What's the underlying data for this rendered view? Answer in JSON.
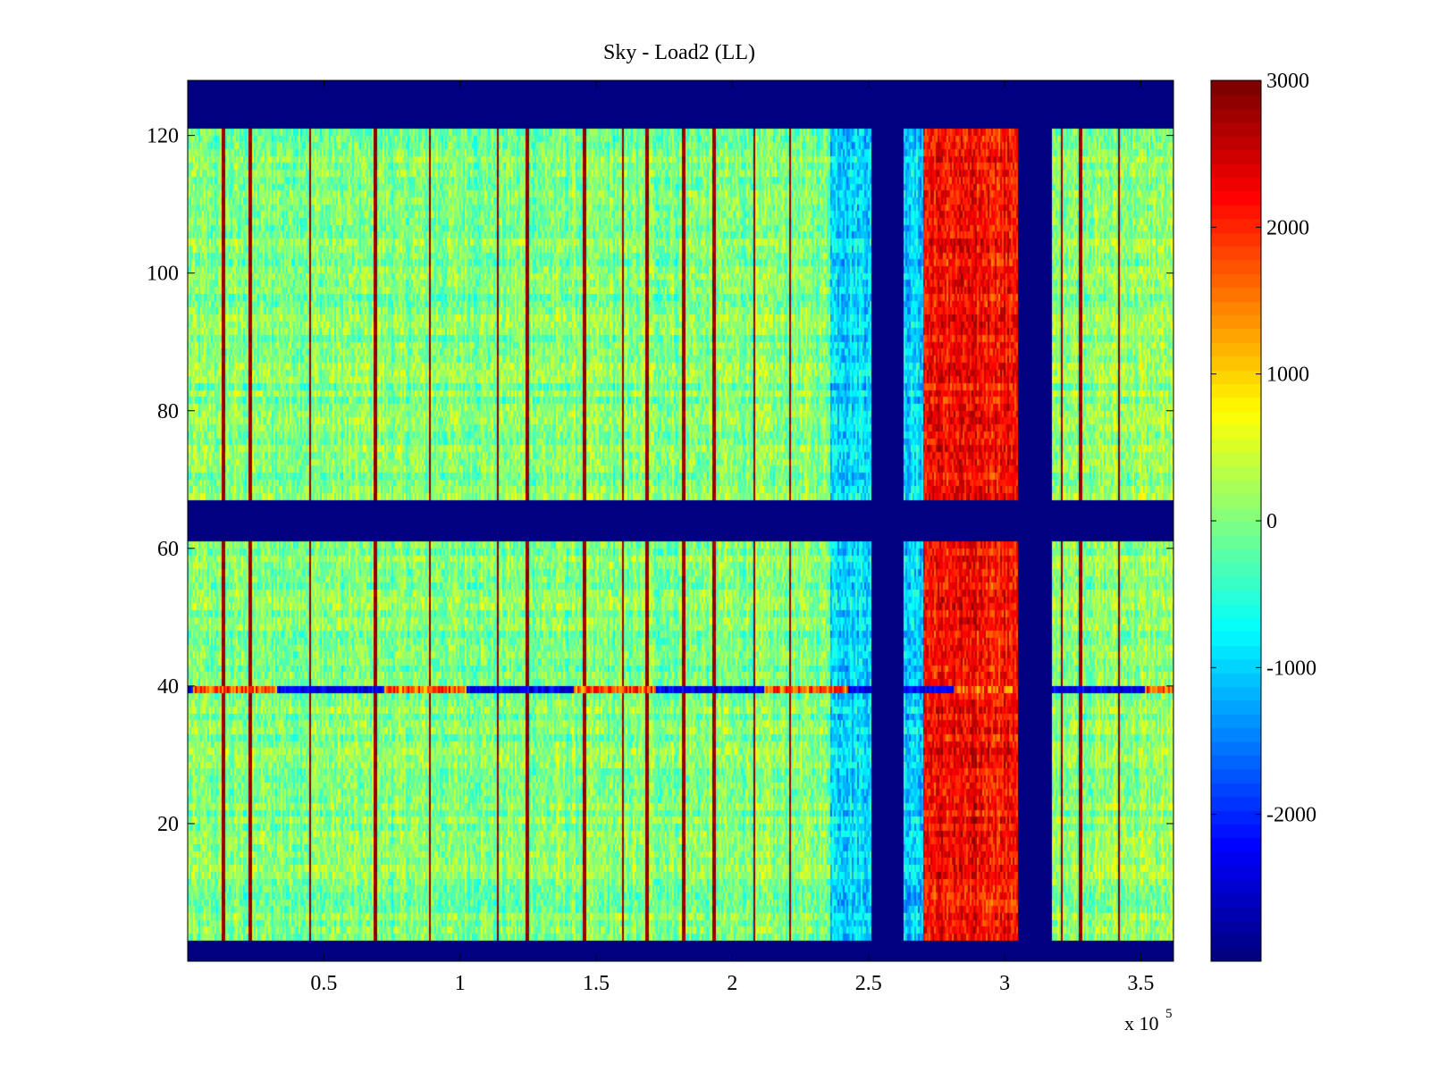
{
  "chart_data": {
    "type": "heatmap",
    "title": "Sky - Load2 (LL)",
    "xlabel": "",
    "ylabel": "",
    "x_exponent_label": "x 10",
    "x_exponent_power": "5",
    "xlim": [
      0,
      3.62
    ],
    "ylim": [
      0,
      128
    ],
    "xticks": [
      0.5,
      1,
      1.5,
      2,
      2.5,
      3,
      3.5
    ],
    "xtick_labels": [
      "0.5",
      "1",
      "1.5",
      "2",
      "2.5",
      "3",
      "3.5"
    ],
    "yticks": [
      20,
      40,
      60,
      80,
      100,
      120
    ],
    "ytick_labels": [
      "20",
      "40",
      "60",
      "80",
      "100",
      "120"
    ],
    "colorbar": {
      "clim": [
        -3000,
        3000
      ],
      "ticks": [
        -2000,
        -1000,
        0,
        1000,
        2000,
        3000
      ],
      "tick_labels": [
        "-2000",
        "-1000",
        "0",
        "1000",
        "2000",
        "3000"
      ],
      "colormap": "jet"
    },
    "masked_rows": [
      [
        0,
        3
      ],
      [
        61,
        67
      ],
      [
        121,
        128
      ]
    ],
    "masked_columns": [
      [
        2.51,
        2.63
      ],
      [
        3.05,
        3.17
      ]
    ],
    "regions": [
      {
        "x_range": [
          0,
          2.36
        ],
        "typical_value": 0,
        "note": "noise around zero"
      },
      {
        "x_range": [
          2.36,
          2.51
        ],
        "typical_value": -900
      },
      {
        "x_range": [
          2.63,
          2.7
        ],
        "typical_value": -1000
      },
      {
        "x_range": [
          2.7,
          3.05
        ],
        "typical_value": 2200
      },
      {
        "x_range": [
          3.17,
          3.62
        ],
        "typical_value": 100
      }
    ],
    "vertical_spikes_x": [
      0.13,
      0.23,
      0.45,
      0.69,
      0.89,
      1.14,
      1.25,
      1.46,
      1.6,
      1.69,
      1.82,
      1.93,
      2.08,
      2.21,
      3.21,
      3.28,
      3.42
    ],
    "row_feature": {
      "y": 39,
      "note": "horizontal line of alternating high/low values"
    }
  }
}
